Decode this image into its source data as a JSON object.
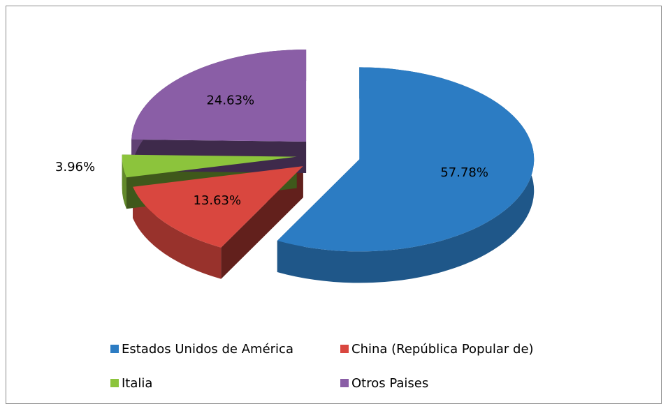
{
  "chart_data": {
    "type": "pie",
    "three_d": true,
    "exploded": true,
    "categories": [
      "Estados Unidos de América",
      "China (República Popular de)",
      "Italia",
      "Otros Paises"
    ],
    "values": [
      57.78,
      13.63,
      3.96,
      24.63
    ],
    "value_labels": [
      "57.78%",
      "13.63%",
      "3.96%",
      "24.63%"
    ],
    "colors": [
      "#2c7cc3",
      "#d9473f",
      "#8cc43c",
      "#8a5ea6"
    ],
    "legend": "bottom"
  }
}
